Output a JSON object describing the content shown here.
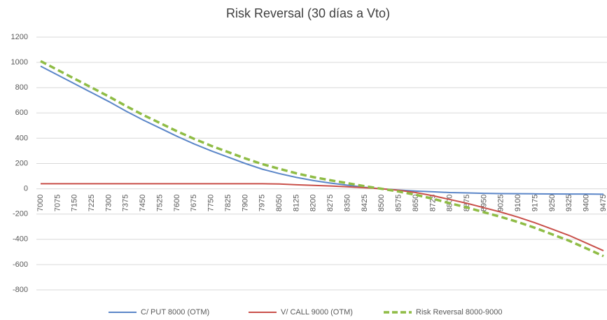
{
  "chart_data": {
    "type": "line",
    "title": "Risk Reversal (30 días a Vto)",
    "categories": [
      "7000",
      "7075",
      "7150",
      "7225",
      "7300",
      "7375",
      "7450",
      "7525",
      "7600",
      "7675",
      "7750",
      "7825",
      "7900",
      "7975",
      "8050",
      "8125",
      "8200",
      "8275",
      "8350",
      "8425",
      "8500",
      "8575",
      "8650",
      "8725",
      "8800",
      "8875",
      "8950",
      "9025",
      "9100",
      "9175",
      "9250",
      "9325",
      "9400",
      "9475"
    ],
    "series": [
      {
        "name": "C/ PUT 8000 (OTM)",
        "color": "#5b86c8",
        "dashed": false,
        "values": [
          970,
          900,
          830,
          760,
          690,
          615,
          545,
          480,
          415,
          355,
          300,
          250,
          200,
          155,
          120,
          90,
          65,
          45,
          28,
          12,
          0,
          -10,
          -18,
          -24,
          -30,
          -33,
          -36,
          -38,
          -39,
          -40,
          -41,
          -42,
          -42,
          -43
        ]
      },
      {
        "name": "V/ CALL 9000 (OTM)",
        "color": "#c9504a",
        "dashed": false,
        "values": [
          40,
          40,
          40,
          40,
          40,
          40,
          40,
          40,
          40,
          40,
          40,
          40,
          40,
          40,
          38,
          32,
          27,
          22,
          16,
          8,
          0,
          -12,
          -30,
          -55,
          -85,
          -115,
          -150,
          -185,
          -225,
          -270,
          -320,
          -370,
          -430,
          -490
        ]
      },
      {
        "name": "Risk Reversal 8000-9000",
        "color": "#8fbc45",
        "dashed": true,
        "values": [
          1010,
          940,
          870,
          800,
          730,
          655,
          585,
          520,
          455,
          395,
          340,
          290,
          240,
          195,
          158,
          122,
          92,
          67,
          44,
          20,
          0,
          -22,
          -48,
          -79,
          -115,
          -148,
          -186,
          -223,
          -264,
          -310,
          -361,
          -412,
          -472,
          -533
        ]
      }
    ],
    "ylim": [
      -800,
      1200
    ],
    "yticks": [
      -800,
      -600,
      -400,
      -200,
      0,
      200,
      400,
      600,
      800,
      1000,
      1200
    ],
    "grid": true,
    "legend": "bottom"
  }
}
